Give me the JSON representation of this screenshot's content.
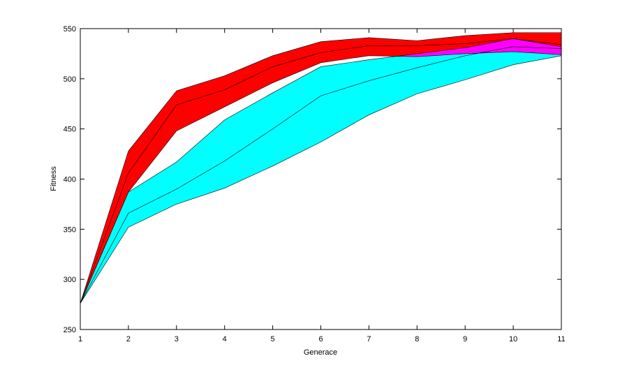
{
  "chart_data": {
    "type": "band",
    "xlabel": "Generace",
    "ylabel": "Fitness",
    "x": [
      1,
      2,
      3,
      4,
      5,
      6,
      7,
      8,
      9,
      10,
      11
    ],
    "xlim": [
      1,
      11
    ],
    "xticks": [
      1,
      2,
      3,
      4,
      5,
      6,
      7,
      8,
      9,
      10,
      11
    ],
    "ylim": [
      250,
      550
    ],
    "yticks": [
      250,
      300,
      350,
      400,
      450,
      500,
      550
    ],
    "overlap_color": "#ff00ff",
    "series": [
      {
        "color": "#ff0000",
        "upper": [
          276,
          428,
          488,
          503,
          523,
          537,
          541,
          538,
          543,
          546,
          546
        ],
        "mean": [
          276,
          406,
          474,
          489,
          512,
          526,
          533,
          533,
          535,
          540,
          534
        ],
        "lower": [
          276,
          387,
          448,
          472,
          496,
          516,
          523,
          522,
          525,
          527,
          524
        ]
      },
      {
        "color": "#00ffff",
        "upper": [
          276,
          387,
          417,
          459,
          486,
          512,
          519,
          525,
          531,
          540,
          532
        ],
        "mean": [
          276,
          366,
          390,
          418,
          450,
          483,
          498,
          511,
          523,
          532,
          530
        ],
        "lower": [
          276,
          352,
          375,
          391,
          413,
          437,
          464,
          485,
          499,
          514,
          523
        ]
      }
    ]
  }
}
